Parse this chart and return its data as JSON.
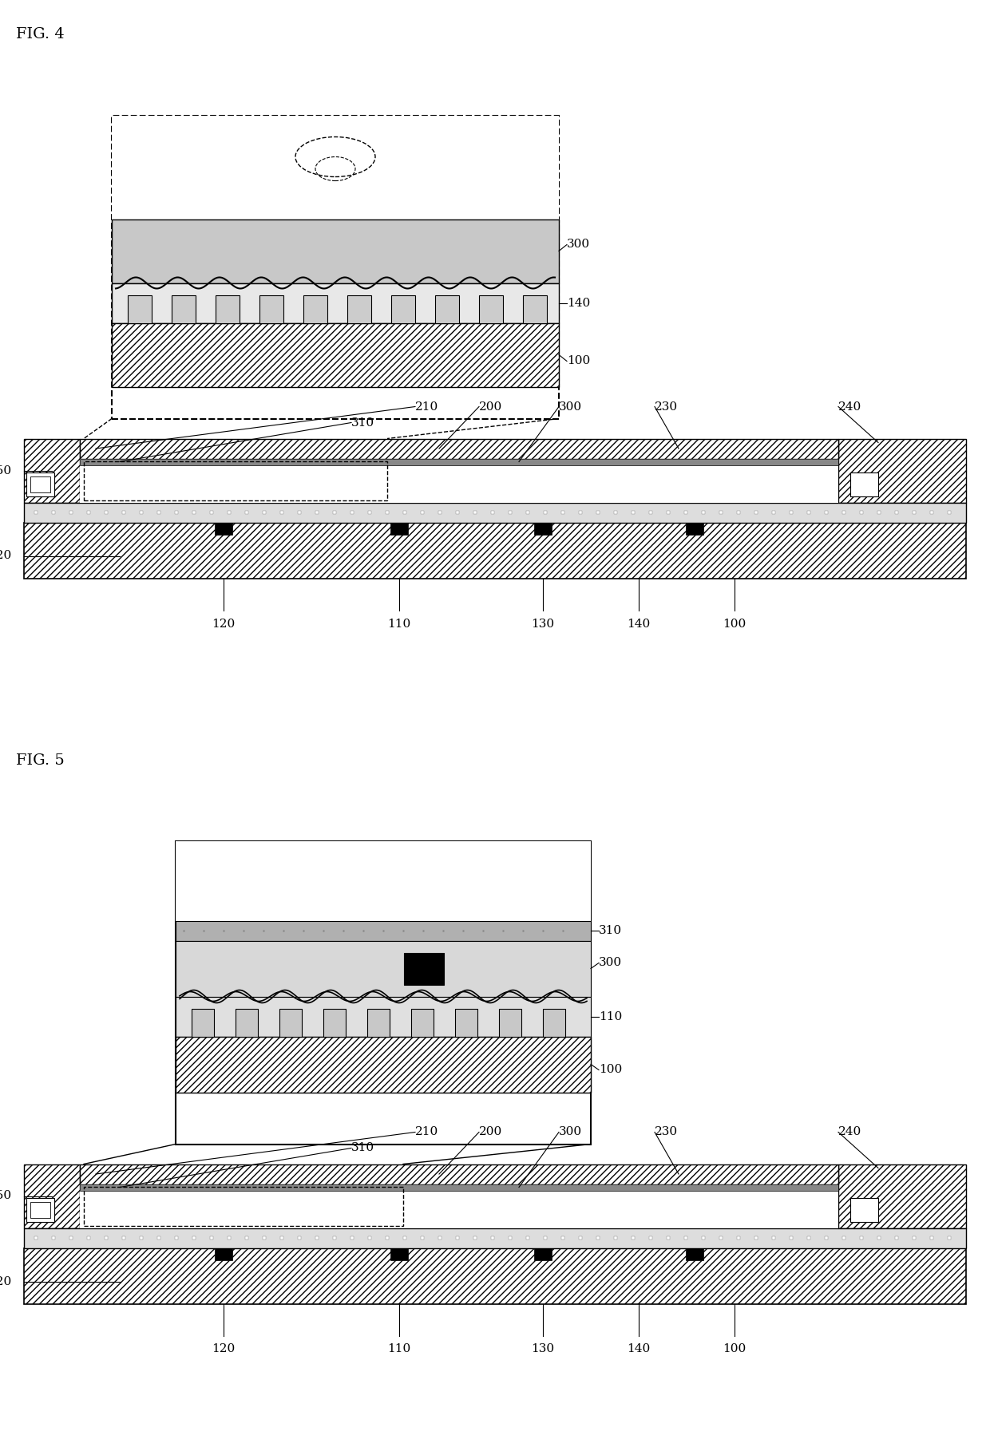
{
  "fig4_title": "FIG. 4",
  "fig5_title": "FIG. 5",
  "bg_color": "#ffffff",
  "label_fontsize": 11,
  "title_fontsize": 14
}
